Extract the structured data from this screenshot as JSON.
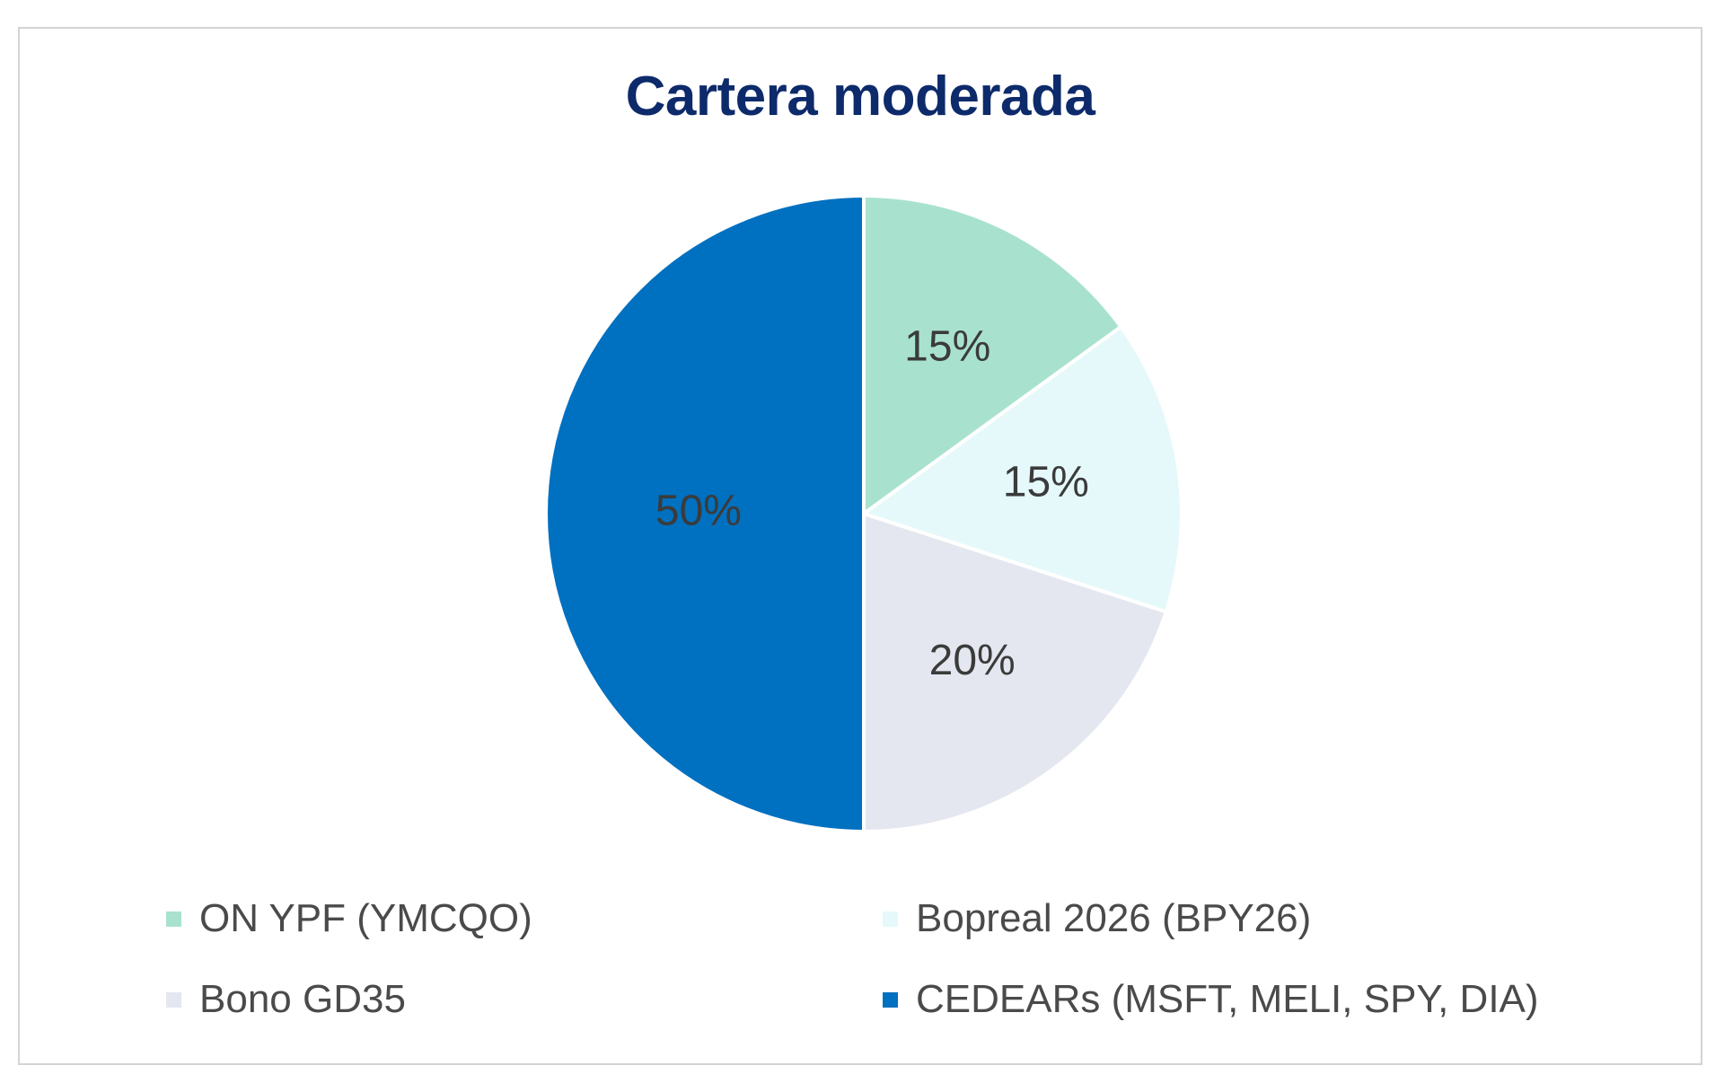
{
  "chart_data": {
    "type": "pie",
    "title": "Cartera moderada",
    "slices": [
      {
        "name": "ON YPF (YMCQO)",
        "value": 15,
        "label": "15%",
        "color": "#a8e2cf"
      },
      {
        "name": "Bopreal 2026 (BPY26)",
        "value": 15,
        "label": "15%",
        "color": "#e6f9fa"
      },
      {
        "name": "Bono GD35",
        "value": 20,
        "label": "20%",
        "color": "#e4e7ef"
      },
      {
        "name": "CEDEARs (MSFT, MELI, SPY, DIA)",
        "value": 50,
        "label": "50%",
        "color": "#0070c0"
      }
    ],
    "legend_position": "bottom"
  }
}
